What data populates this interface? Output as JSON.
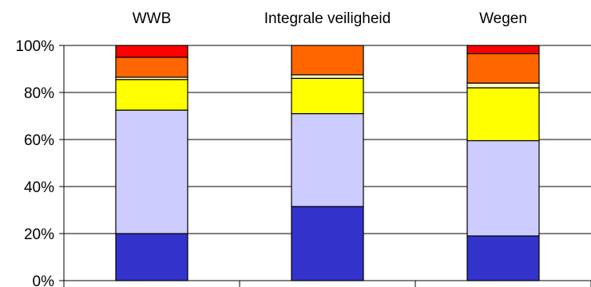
{
  "chart_data": {
    "type": "bar",
    "stacked": "percent",
    "categories": [
      "WWB",
      "Integrale veiligheid",
      "Wegen"
    ],
    "category_labels_position": "top",
    "ylim": [
      0,
      100
    ],
    "yticks": [
      "0%",
      "20%",
      "40%",
      "60%",
      "80%",
      "100%"
    ],
    "grid": true,
    "legend": "none",
    "series": [
      {
        "color": "#3333cc",
        "values": [
          20,
          31.5,
          19
        ]
      },
      {
        "color": "#ccccff",
        "values": [
          52.5,
          39.5,
          40.5
        ]
      },
      {
        "color": "#ffff00",
        "values": [
          13,
          15,
          22.5
        ]
      },
      {
        "color": "#ffffcc",
        "values": [
          1,
          1.5,
          2
        ]
      },
      {
        "color": "#ff6600",
        "values": [
          8.5,
          12.5,
          12.5
        ]
      },
      {
        "color": "#ff0000",
        "values": [
          5,
          0,
          3.5
        ]
      }
    ]
  }
}
